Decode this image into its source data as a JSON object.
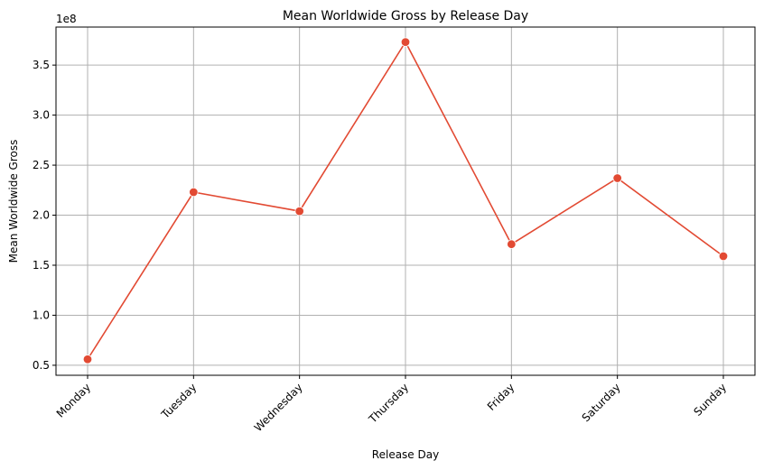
{
  "chart_data": {
    "type": "line",
    "title": "Mean Worldwide Gross by Release Day",
    "xlabel": "Release Day",
    "ylabel": "Mean Worldwide Gross",
    "y_offset_label": "1e8",
    "categories": [
      "Monday",
      "Tuesday",
      "Wednesday",
      "Thursday",
      "Friday",
      "Saturday",
      "Sunday"
    ],
    "series": [
      {
        "values": [
          56000000,
          223000000,
          204000000,
          373000000,
          171000000,
          237000000,
          159000000
        ]
      }
    ],
    "ylim": [
      40000000,
      388000000
    ],
    "y_ticks": [
      50000000,
      100000000,
      150000000,
      200000000,
      250000000,
      300000000,
      350000000
    ],
    "y_tick_labels": [
      "0.5",
      "1.0",
      "1.5",
      "2.0",
      "2.5",
      "3.0",
      "3.5"
    ],
    "grid": true,
    "line_color": "#e24a33",
    "marker": "circle"
  }
}
